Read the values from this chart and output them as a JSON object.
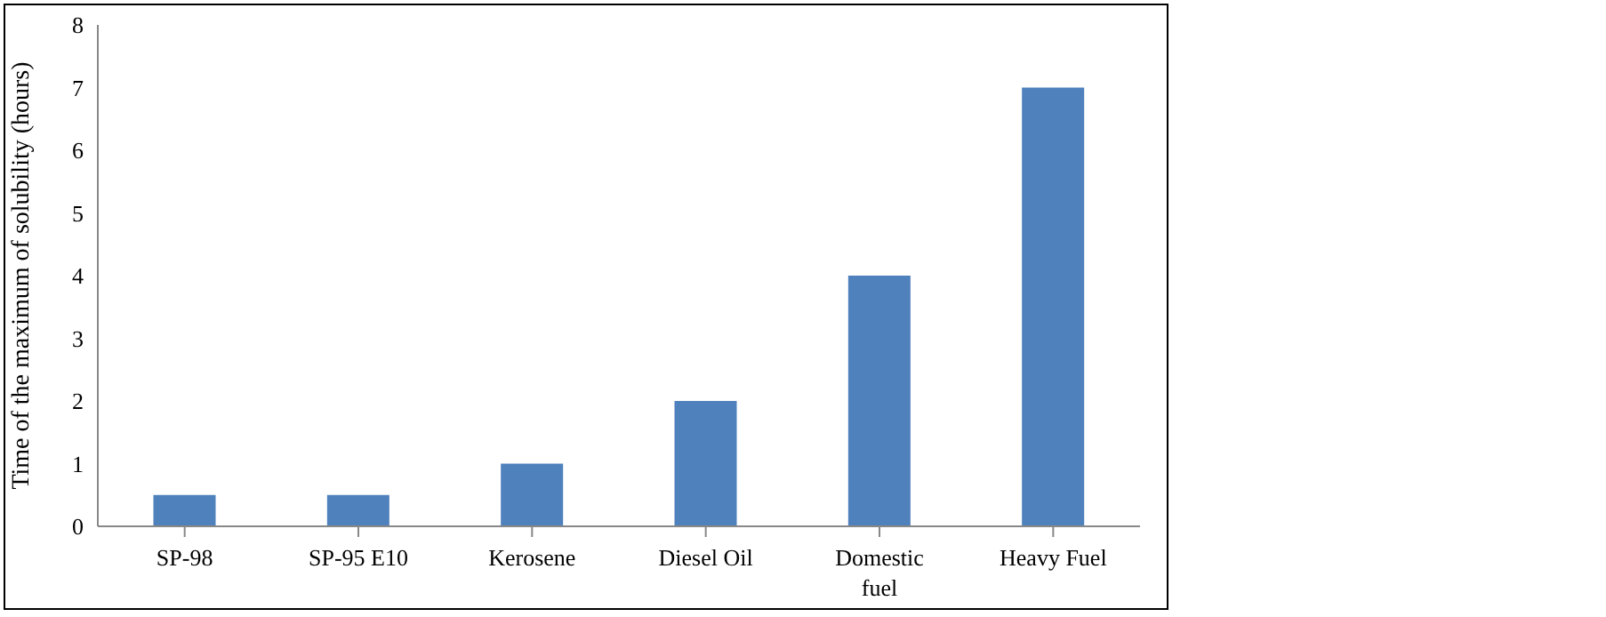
{
  "chart_data": {
    "type": "bar",
    "ylabel": "Time of the maximum of solubility (hours)",
    "categories": [
      "SP-98",
      "SP-95 E10",
      "Kerosene",
      "Diesel Oil",
      "Domestic fuel",
      "Heavy Fuel"
    ],
    "values": [
      0.5,
      0.5,
      1,
      2,
      4,
      7
    ],
    "color": "#4f81bd",
    "ylim": [
      0,
      8
    ],
    "yticks": [
      0,
      1,
      2,
      3,
      4,
      5,
      6,
      7,
      8
    ],
    "grid": false,
    "legend": false
  }
}
